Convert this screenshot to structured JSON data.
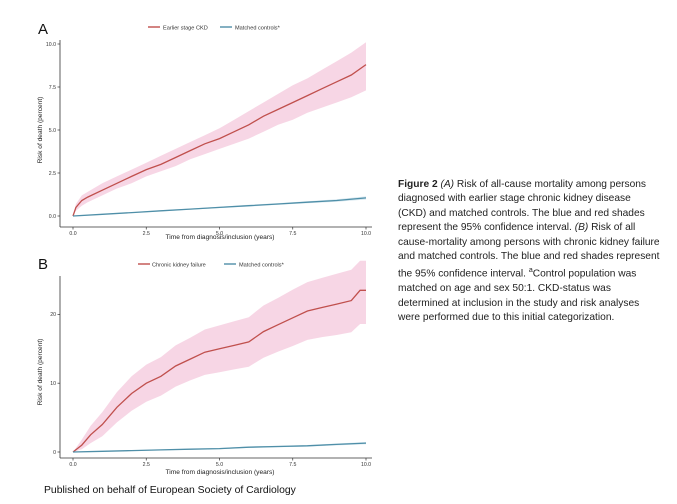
{
  "chart_data": [
    {
      "type": "line",
      "panel_label": "A",
      "legend_entries": [
        "Earlier stage CKD",
        "Matched controls*"
      ],
      "legend_placement": "top",
      "xlabel": "Time from diagnosis/inclusion (years)",
      "ylabel": "Risk of death (percent)",
      "xlim": [
        0,
        10
      ],
      "ylim": [
        0,
        10
      ],
      "xticks": [
        "0.0",
        "2.5",
        "5.0",
        "7.5",
        "10.0"
      ],
      "yticks": [
        "0.0",
        "2.5",
        "5.0",
        "7.5",
        "10.0"
      ],
      "grid": false,
      "series": [
        {
          "name": "Earlier stage CKD",
          "color": "#c0504d",
          "band_color": "#f6cfe0",
          "x": [
            0,
            0.1,
            0.3,
            0.5,
            1,
            1.5,
            2,
            2.5,
            3,
            3.5,
            4,
            4.5,
            5,
            5.5,
            6,
            6.5,
            7,
            7.5,
            8,
            8.5,
            9,
            9.5,
            10
          ],
          "y": [
            0,
            0.5,
            0.9,
            1.1,
            1.5,
            1.9,
            2.3,
            2.7,
            3.0,
            3.4,
            3.8,
            4.2,
            4.5,
            4.9,
            5.3,
            5.8,
            6.2,
            6.6,
            7.0,
            7.4,
            7.8,
            8.2,
            8.8
          ],
          "lower": [
            0,
            0.3,
            0.6,
            0.8,
            1.2,
            1.6,
            1.9,
            2.3,
            2.6,
            2.9,
            3.3,
            3.6,
            3.9,
            4.2,
            4.5,
            4.9,
            5.3,
            5.6,
            6.0,
            6.3,
            6.6,
            6.9,
            7.3
          ],
          "upper": [
            0,
            0.7,
            1.2,
            1.4,
            1.9,
            2.3,
            2.7,
            3.1,
            3.5,
            3.9,
            4.3,
            4.7,
            5.1,
            5.6,
            6.1,
            6.6,
            7.1,
            7.6,
            8.0,
            8.5,
            9.0,
            9.5,
            10.1
          ]
        },
        {
          "name": "Matched controls*",
          "color": "#4f8fa8",
          "band_color": "#cfe3ec",
          "x": [
            0,
            1,
            2,
            3,
            4,
            5,
            6,
            7,
            8,
            9,
            10
          ],
          "y": [
            0,
            0.1,
            0.2,
            0.3,
            0.4,
            0.5,
            0.6,
            0.7,
            0.8,
            0.9,
            1.05
          ],
          "lower": [
            0,
            0.08,
            0.18,
            0.27,
            0.37,
            0.46,
            0.55,
            0.65,
            0.74,
            0.83,
            0.96
          ],
          "upper": [
            0,
            0.12,
            0.22,
            0.33,
            0.43,
            0.54,
            0.65,
            0.75,
            0.86,
            0.97,
            1.14
          ]
        }
      ]
    },
    {
      "type": "line",
      "panel_label": "B",
      "legend_entries": [
        "Chronic kidney failure",
        "Matched controls*"
      ],
      "legend_placement": "top",
      "xlabel": "Time from diagnosis/inclusion (years)",
      "ylabel": "Risk of death (percent)",
      "xlim": [
        0,
        10
      ],
      "ylim": [
        0,
        25
      ],
      "xticks": [
        "0.0",
        "2.5",
        "5.0",
        "7.5",
        "10.0"
      ],
      "yticks": [
        "0",
        "10",
        "20"
      ],
      "grid": false,
      "series": [
        {
          "name": "Chronic kidney failure",
          "color": "#c0504d",
          "band_color": "#f6cfe0",
          "x": [
            0,
            0.3,
            0.6,
            1,
            1.5,
            2,
            2.5,
            3,
            3.5,
            4,
            4.5,
            5,
            5.5,
            6,
            6.5,
            7,
            7.5,
            8,
            8.5,
            9,
            9.5,
            9.8,
            10
          ],
          "y": [
            0,
            1,
            2.5,
            4,
            6.5,
            8.5,
            10,
            11,
            12.5,
            13.5,
            14.5,
            15,
            15.5,
            16,
            17.5,
            18.5,
            19.5,
            20.5,
            21,
            21.5,
            22,
            23.5,
            23.5
          ],
          "lower": [
            0,
            0.4,
            1.3,
            2.3,
            4.3,
            6.0,
            7.3,
            8.2,
            9.5,
            10.4,
            11.2,
            11.6,
            12.0,
            12.4,
            13.7,
            14.6,
            15.4,
            16.3,
            16.7,
            17.0,
            17.4,
            18.6,
            18.6
          ],
          "upper": [
            0,
            1.8,
            3.8,
            5.8,
            8.7,
            11.0,
            12.7,
            13.8,
            15.5,
            16.6,
            17.8,
            18.4,
            19.0,
            19.6,
            21.3,
            22.4,
            23.6,
            24.7,
            25.3,
            25.9,
            26.5,
            27.8,
            27.8
          ]
        },
        {
          "name": "Matched controls*",
          "color": "#4f8fa8",
          "band_color": "#cfe3ec",
          "x": [
            0,
            1,
            2,
            3,
            4,
            5,
            6,
            7,
            8,
            9,
            10
          ],
          "y": [
            0,
            0.1,
            0.2,
            0.3,
            0.4,
            0.5,
            0.7,
            0.8,
            0.9,
            1.1,
            1.3
          ],
          "lower": [
            0,
            0.07,
            0.15,
            0.24,
            0.33,
            0.42,
            0.6,
            0.69,
            0.78,
            0.96,
            1.14
          ],
          "upper": [
            0,
            0.13,
            0.25,
            0.36,
            0.47,
            0.58,
            0.8,
            0.91,
            1.02,
            1.24,
            1.46
          ]
        }
      ]
    }
  ],
  "caption": {
    "figure_label": "Figure 2",
    "part_a_tag": "(A)",
    "part_a_text": " Risk of all-cause mortality among persons diagnosed with earlier stage chronic kidney disease (CKD) and matched controls. The blue and red shades represent the 95% confidence interval. ",
    "part_b_tag": "(B)",
    "part_b_text": " Risk of all cause-mortality among persons with chronic kidney failure and matched controls. The blue and red shades represent the 95% confidence interval. ",
    "footnote_mark": "a",
    "footnote_text": "Control population was matched on age and sex 50:1. CKD-status was determined at inclusion in the study and risk analyses were performed due to this initial categorization."
  },
  "footer": "Published on behalf of European Society of Cardiology"
}
